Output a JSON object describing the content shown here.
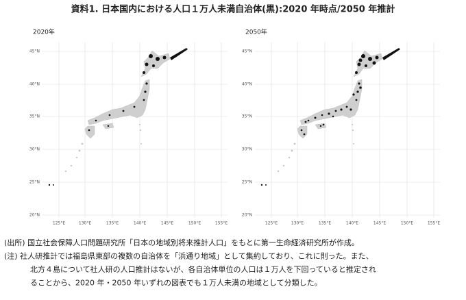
{
  "title": "資料1. 日本国内における人口１万人未満自治体(黒):2020 年時点/2050 年推計",
  "panels": [
    {
      "title": "2020年"
    },
    {
      "title": "2050年"
    }
  ],
  "lat_labels": [
    "45°N",
    "40°N",
    "35°N",
    "30°N",
    "25°N",
    "20°N"
  ],
  "lon_labels": [
    "125°E",
    "130°E",
    "135°E",
    "140°E",
    "145°E",
    "150°E",
    "155°E"
  ],
  "notes": [
    "(出所) 国立社会保障人口問題研究所「日本の地域別将来推計人口」をもとに第一生命経済研究所が作成。",
    "(注) 社人研推計では福島県東部の複数の自治体を「浜通り地域」として集約しており、これに則った。また、",
    "北方４島について社人研の人口推計はないが、各自治体単位の人口は１万人を下回っていると推定され",
    "ることから、2020 年・2050 年いずれの図表でも１万人未満の地域として分類した。"
  ]
}
